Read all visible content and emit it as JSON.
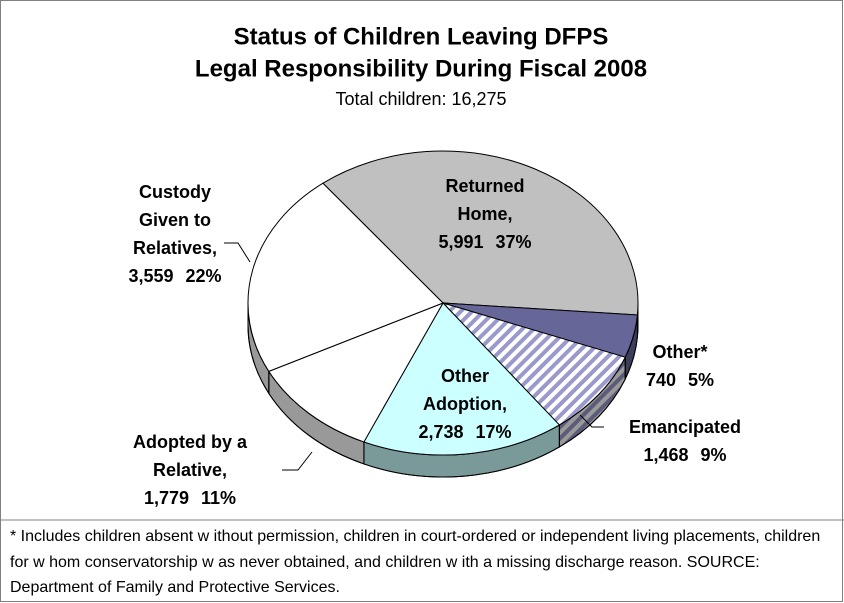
{
  "chart_data": {
    "type": "pie3d",
    "title": "Status of Children Leaving DFPS",
    "title_line2": "Legal Responsibility During Fiscal 2008",
    "subtitle": "Total children: 16,275",
    "categories": [
      "Returned Home,",
      "Other*",
      "Emancipated",
      "Other Adoption,",
      "Adopted by a Relative,",
      "Custody Given to Relatives,"
    ],
    "values": [
      5991,
      740,
      1468,
      2738,
      1779,
      3559
    ],
    "value_labels": [
      "5,991",
      "740",
      "1,468",
      "2,738",
      "1,779",
      "3,559"
    ],
    "percents": [
      37,
      5,
      9,
      17,
      11,
      22
    ],
    "percent_labels": [
      "37%",
      "5%",
      "9%",
      "17%",
      "11%",
      "22%"
    ],
    "colors": [
      "#c0c0c0",
      "#666699",
      "#9999cc",
      "#ccffff",
      "#ffffff",
      "#ffffff"
    ],
    "patterns": [
      null,
      null,
      "hatch",
      null,
      null,
      null
    ],
    "footnote": "* Includes children absent w ithout permission, children in court-ordered or independent living placements, children for w hom conservatorship w as never obtained, and children w ith a missing discharge reason. SOURCE: Department of Family and Protective Services."
  }
}
